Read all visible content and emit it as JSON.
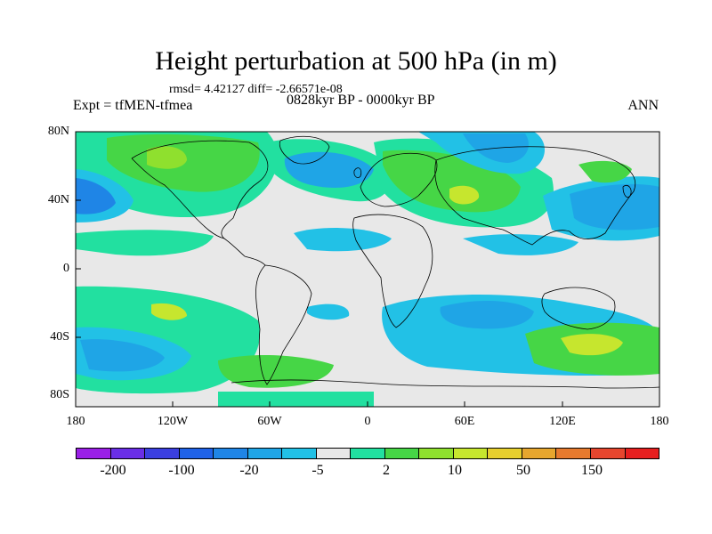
{
  "header": {
    "title": "Height perturbation at 500 hPa (in m)",
    "stats": "rmsd= 4.42127 diff= -2.66571e-08",
    "expt": "Expt = tfMEN-tfmea",
    "period": "0828kyr BP - 0000kyr BP",
    "season": "ANN"
  },
  "axes": {
    "y_ticks": [
      "80N",
      "40N",
      "0",
      "40S",
      "80S"
    ],
    "x_ticks": [
      "180",
      "120W",
      "60W",
      "0",
      "60E",
      "120E",
      "180"
    ]
  },
  "colorbar": {
    "labels": [
      "-200",
      "-100",
      "-20",
      "-5",
      "2",
      "10",
      "50",
      "150"
    ],
    "colors": [
      "#9a1fe6",
      "#6a2ee6",
      "#3b3fe0",
      "#1f62e8",
      "#1f85e6",
      "#1fa5e6",
      "#22c1e6",
      "#e8e8e8",
      "#22e0a0",
      "#46d646",
      "#8fe02e",
      "#c6e62e",
      "#e6cf2e",
      "#e6a62e",
      "#e67a2e",
      "#e6462e",
      "#e61f1f"
    ]
  },
  "map_colors": {
    "ocean_bg": "#e8e8e8",
    "lightblue": "#22c1e6",
    "blue": "#1fa5e6",
    "deepblue": "#1f85e6",
    "teal": "#22e0a0",
    "green": "#46d646",
    "yellowgreen": "#c6e62e",
    "coast": "#000000"
  }
}
